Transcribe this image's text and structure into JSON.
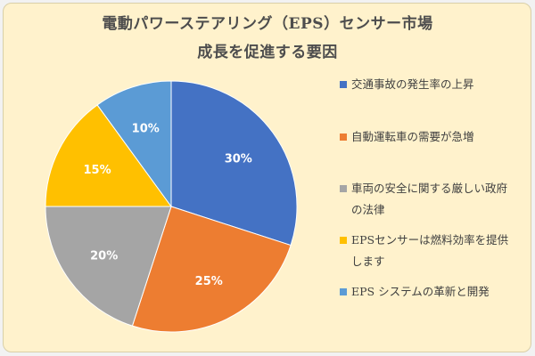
{
  "chart_data": {
    "type": "pie",
    "title": "電動パワーステアリング（EPS）センサー市場",
    "subtitle": "成長を促進する要因",
    "slices": [
      {
        "label": "交通事故の発生率の上昇",
        "value": 30,
        "value_label": "30%",
        "color": "#4472c4"
      },
      {
        "label": "自動運転車の需要が急増",
        "value": 25,
        "value_label": "25%",
        "color": "#ed7d31"
      },
      {
        "label": "車両の安全に関する厳しい政府の法律",
        "value": 20,
        "value_label": "20%",
        "color": "#a5a5a5"
      },
      {
        "label": "EPSセンサーは燃料効率を提供します",
        "value": 15,
        "value_label": "15%",
        "color": "#ffc000"
      },
      {
        "label": "EPS システムの革新と開発",
        "value": 10,
        "value_label": "10%",
        "color": "#5b9bd5"
      }
    ],
    "legend_position": "right"
  }
}
